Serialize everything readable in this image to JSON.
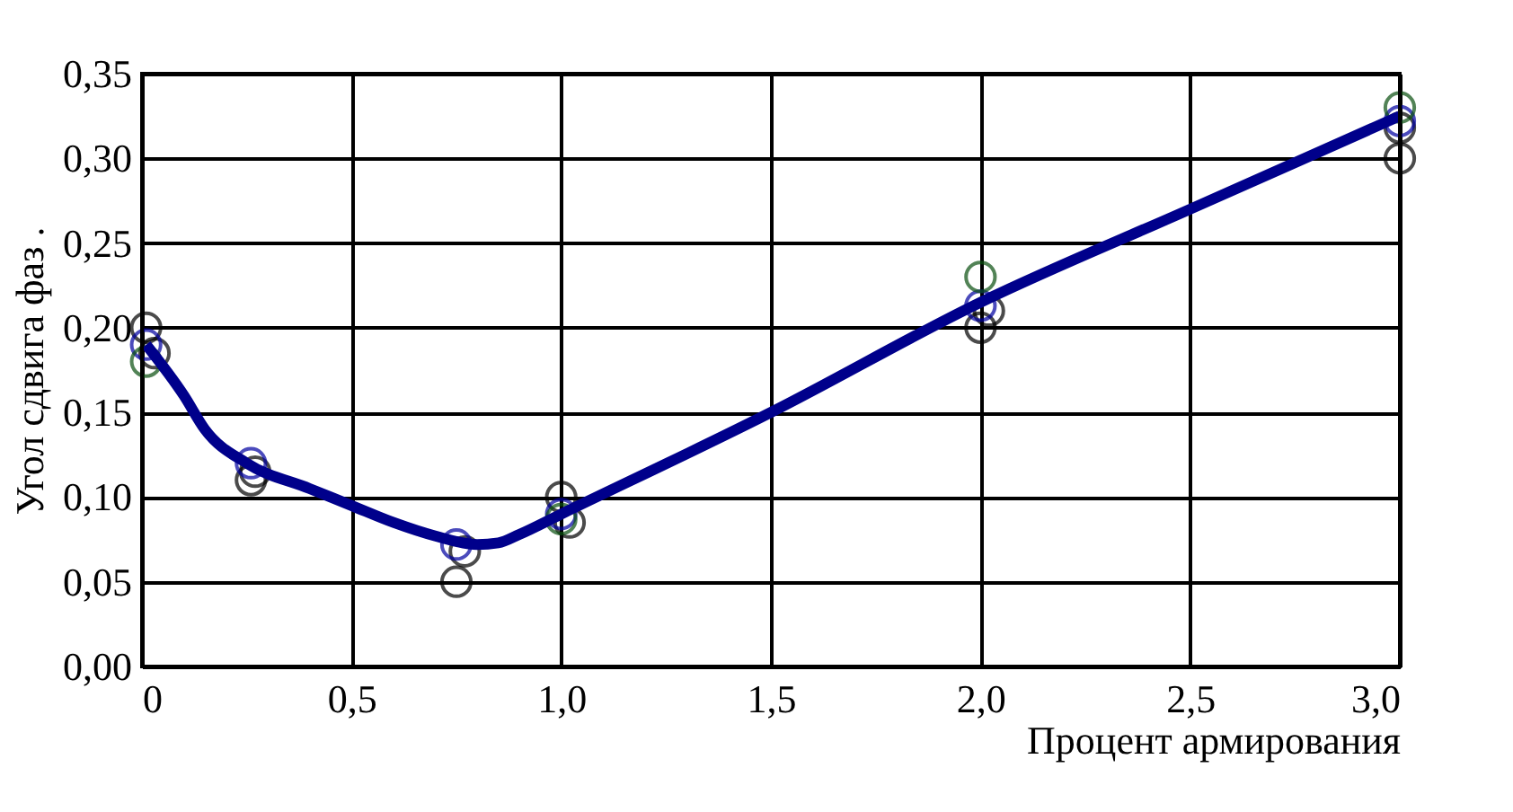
{
  "chart_data": {
    "type": "scatter",
    "xlabel": "Процент армирования",
    "ylabel": "Угол  сдвига фаз .",
    "xlim": [
      0,
      3.0
    ],
    "xticks": [
      {
        "value": 0,
        "label": "0"
      },
      {
        "value": 0.5,
        "label": "0,5"
      },
      {
        "value": 1.0,
        "label": "1,0"
      },
      {
        "value": 1.5,
        "label": "1,5"
      },
      {
        "value": 2.0,
        "label": "2,0"
      },
      {
        "value": 2.5,
        "label": "2,5"
      },
      {
        "value": 3.0,
        "label": "3,0"
      }
    ],
    "ylim": [
      0,
      0.35
    ],
    "yticks": [
      {
        "value": 0,
        "label": "0,00"
      },
      {
        "value": 0.05,
        "label": "0,05"
      },
      {
        "value": 0.1,
        "label": "0,10"
      },
      {
        "value": 0.15,
        "label": "0,15"
      },
      {
        "value": 0.2,
        "label": "0,20"
      },
      {
        "value": 0.25,
        "label": "0,25"
      },
      {
        "value": 0.3,
        "label": "0,30"
      },
      {
        "value": 0.35,
        "label": "0,35"
      }
    ],
    "grid": true,
    "marker": "circle",
    "series": [
      {
        "color": "#000000",
        "x": [
          0.01,
          0.03,
          0.26,
          0.27,
          0.75,
          0.77,
          1.0,
          1.02,
          2.0,
          2.02,
          3.0,
          3.0
        ],
        "values": [
          0.2,
          0.185,
          0.11,
          0.115,
          0.05,
          0.068,
          0.1,
          0.085,
          0.2,
          0.21,
          0.3,
          0.318
        ]
      },
      {
        "color": "#0000a0",
        "x": [
          0.01,
          0.26,
          0.75,
          1.0,
          2.0,
          3.0
        ],
        "values": [
          0.19,
          0.12,
          0.072,
          0.09,
          0.213,
          0.322
        ]
      },
      {
        "color": "#0a5010",
        "x": [
          0.01,
          1.0,
          2.0,
          3.0
        ],
        "values": [
          0.18,
          0.087,
          0.23,
          0.33
        ]
      },
      {
        "type": "line",
        "color": "#00008b",
        "marker": "none",
        "x": [
          0.01,
          0.1,
          0.15,
          0.25,
          0.4,
          0.5,
          0.6,
          0.7,
          0.8,
          0.85,
          0.9,
          1.0,
          1.5,
          2.0,
          2.5,
          3.0
        ],
        "values": [
          0.19,
          0.16,
          0.14,
          0.12,
          0.105,
          0.095,
          0.085,
          0.077,
          0.072,
          0.073,
          0.078,
          0.09,
          0.15,
          0.215,
          0.27,
          0.325
        ]
      }
    ]
  }
}
